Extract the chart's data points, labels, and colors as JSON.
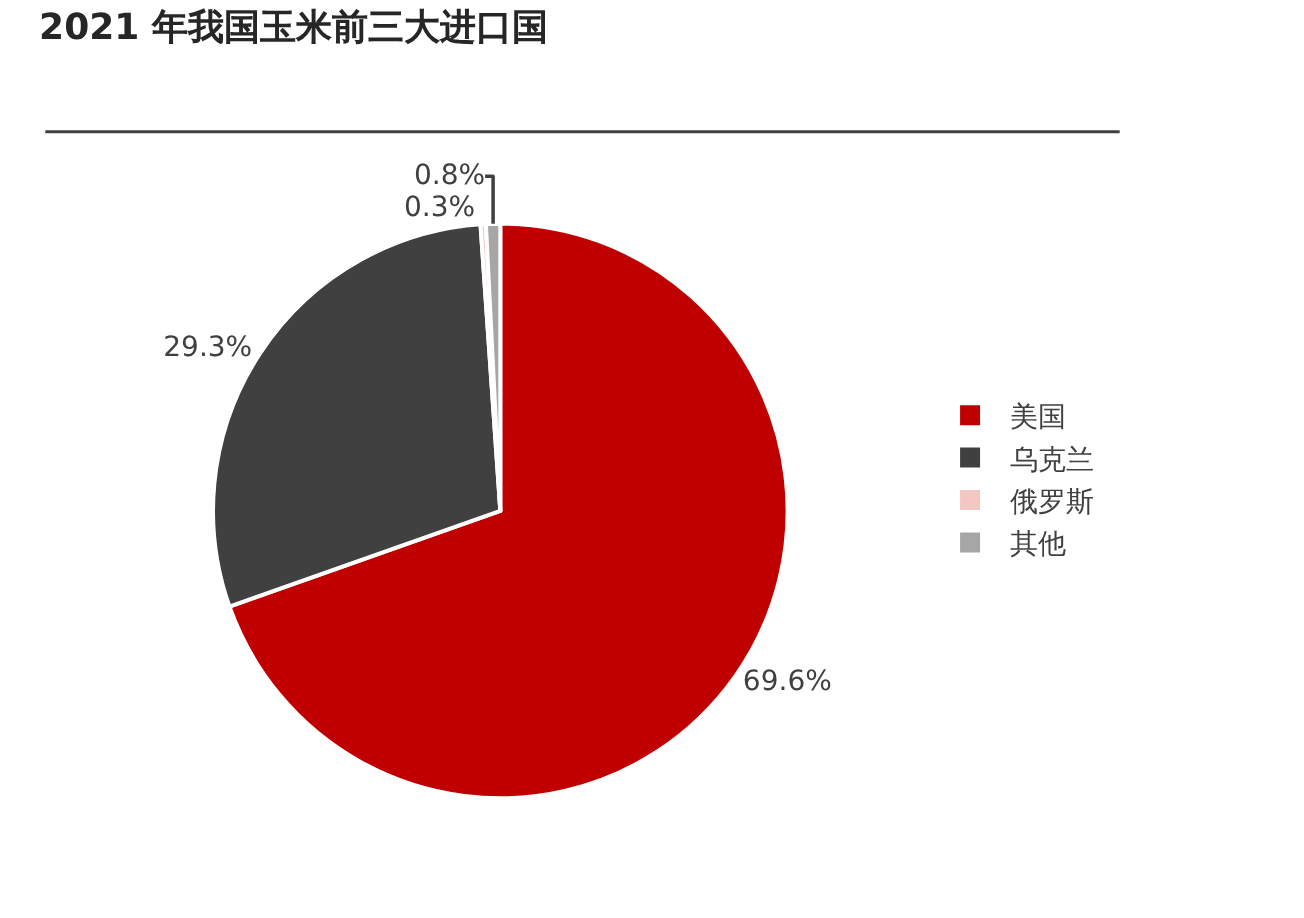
{
  "chart_data": {
    "type": "pie",
    "title": "2021 年我国玉米前三大进口国",
    "categories": [
      "美国",
      "乌克兰",
      "俄罗斯",
      "其他"
    ],
    "values": [
      69.6,
      29.3,
      0.3,
      0.8
    ],
    "value_labels": [
      "69.6%",
      "29.3%",
      "0.3%",
      "0.8%"
    ],
    "colors": [
      "#c00000",
      "#404040",
      "#f4c7c3",
      "#a6a6a6"
    ],
    "legend": "right"
  }
}
